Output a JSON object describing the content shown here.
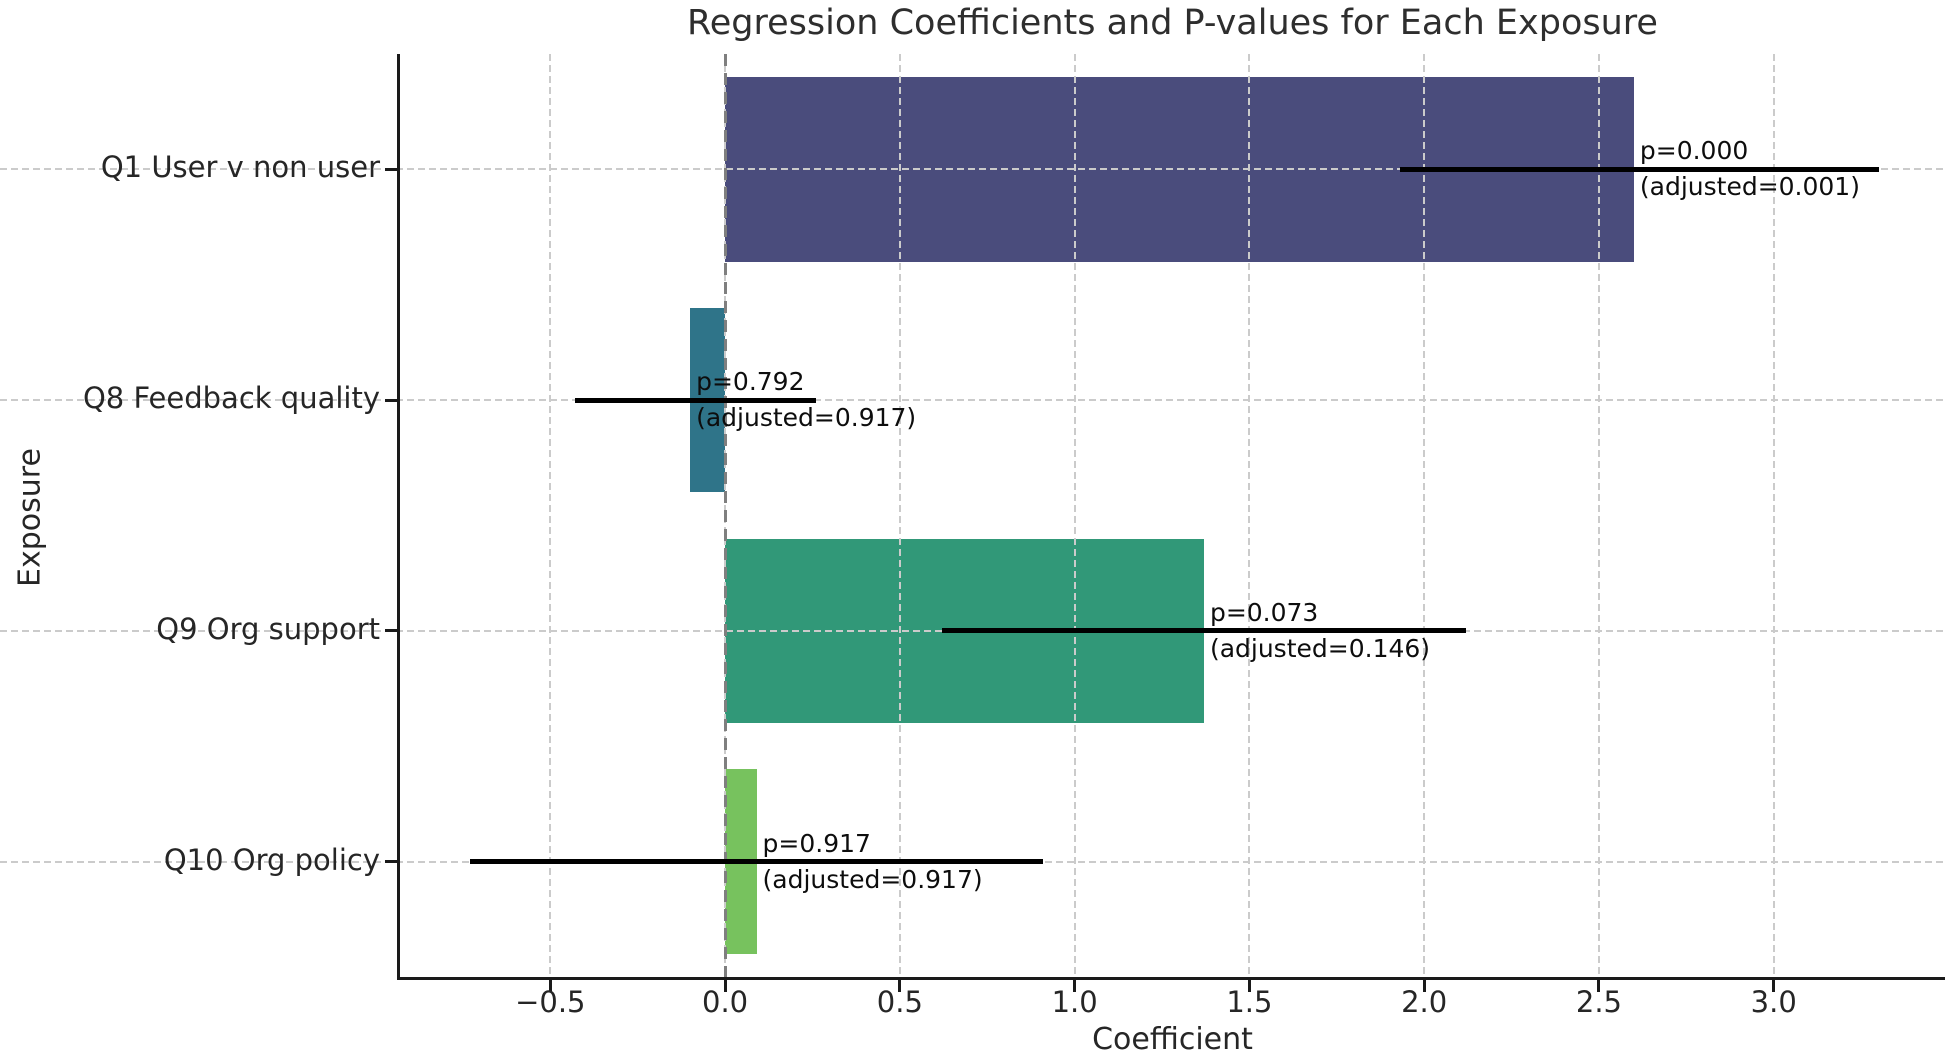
{
  "chart_data": {
    "type": "bar",
    "orientation": "horizontal",
    "title": "Regression Coefficients and P-values for Each Exposure",
    "xlabel": "Coefficient",
    "ylabel": "Exposure",
    "xlim": [
      -0.93,
      3.49
    ],
    "x_ticks": [
      -0.5,
      0.0,
      0.5,
      1.0,
      1.5,
      2.0,
      2.5,
      3.0
    ],
    "x_tick_labels": [
      "−0.5",
      "0.0",
      "0.5",
      "1.0",
      "1.5",
      "2.0",
      "2.5",
      "3.0"
    ],
    "grid": true,
    "legend": "none",
    "zero_line": {
      "x": 0,
      "style": "dashed",
      "color": "#7f7f7f"
    },
    "categories": [
      "Q1 User v non user",
      "Q8 Feedback quality",
      "Q9 Org support",
      "Q10 Org policy"
    ],
    "series": [
      {
        "name": "coefficient",
        "values": [
          2.6,
          -0.1,
          1.37,
          0.09
        ],
        "ci_low": [
          1.93,
          -0.43,
          0.62,
          -0.73
        ],
        "ci_high": [
          3.3,
          0.26,
          2.12,
          0.91
        ],
        "p_labels": [
          "p=0.000",
          "p=0.792",
          "p=0.073",
          "p=0.917"
        ],
        "adjusted_labels": [
          "(adjusted=0.001)",
          "(adjusted=0.917)",
          "(adjusted=0.146)",
          "(adjusted=0.917)"
        ],
        "bar_colors": [
          "#4a4c7c",
          "#2f7489",
          "#319878",
          "#77c25e"
        ]
      }
    ],
    "colors": {
      "grid": "#cbcbcb",
      "zero_line": "#7f7f7f",
      "error_bar": "#000000",
      "text": "#262626"
    }
  }
}
